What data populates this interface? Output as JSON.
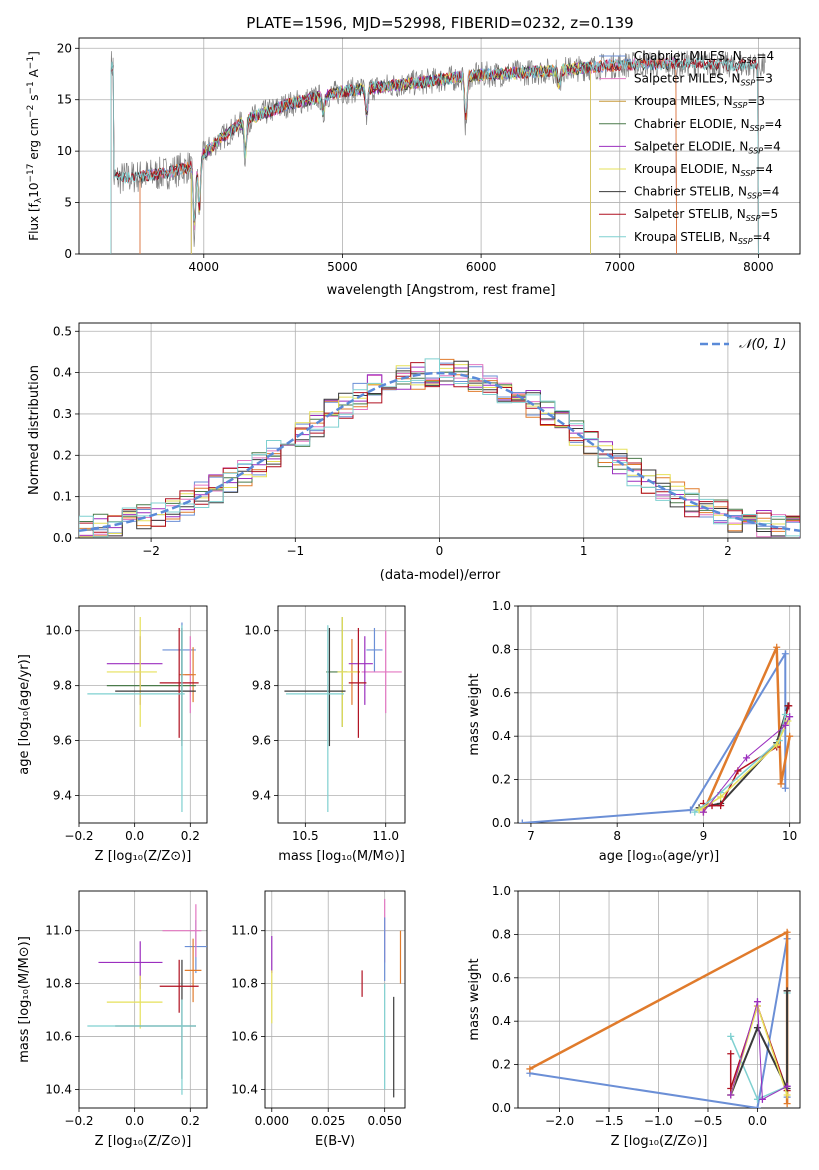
{
  "title": "PLATE=1596, MJD=52998, FIBERID=0232, z=0.139",
  "colors": {
    "chab_miles": "#6b8fd6",
    "salp_miles": "#e377c2",
    "krou_miles": "#d9a23a",
    "chab_elodie": "#4a7a4a",
    "salp_elodie": "#9b2fbf",
    "krou_elodie": "#e6e05a",
    "chab_stelib": "#3a3a3a",
    "salp_stelib": "#b01020",
    "krou_stelib": "#7fd0d0",
    "orange": "#e07b2c",
    "grid": "#b0b0b0",
    "data": "#808080",
    "normal": "#5a8ad8"
  },
  "legend": [
    {
      "text": "Chabrier MILES, N",
      "n": "4",
      "color": "chab_miles"
    },
    {
      "text": "Salpeter MILES, N",
      "n": "3",
      "color": "salp_miles"
    },
    {
      "text": "Kroupa MILES, N",
      "n": "3",
      "color": "krou_miles"
    },
    {
      "text": "Chabrier ELODIE, N",
      "n": "4",
      "color": "chab_elodie"
    },
    {
      "text": "Salpeter ELODIE, N",
      "n": "4",
      "color": "salp_elodie"
    },
    {
      "text": "Kroupa ELODIE, N",
      "n": "4",
      "color": "krou_elodie"
    },
    {
      "text": "Chabrier STELIB, N",
      "n": "4",
      "color": "chab_stelib"
    },
    {
      "text": "Salpeter STELIB, N",
      "n": "5",
      "color": "salp_stelib"
    },
    {
      "text": "Kroupa STELIB, N",
      "n": "4",
      "color": "krou_stelib"
    }
  ],
  "chart_data": [
    {
      "type": "line",
      "id": "spectrum",
      "xlabel": "wavelength [Angstrom, rest frame]",
      "ylabel": "Flux [f_λ 10^-17 erg cm^-2 s^-1 A^-1]",
      "xlim": [
        3100,
        8300
      ],
      "ylim": [
        0,
        21
      ],
      "xticks": [
        4000,
        5000,
        6000,
        7000,
        8000
      ],
      "yticks": [
        0,
        5,
        10,
        15,
        20
      ],
      "continuum": {
        "x": [
          3350,
          3500,
          3700,
          3900,
          4100,
          4300,
          4600,
          5000,
          5500,
          6000,
          6500,
          7000,
          7500,
          8000
        ],
        "y": [
          7.3,
          7.5,
          7.8,
          8.5,
          11.0,
          13.0,
          14.5,
          15.8,
          16.6,
          17.4,
          17.8,
          18.4,
          18.5,
          18.3
        ]
      },
      "features": [
        [
          3933,
          8
        ],
        [
          3968,
          6
        ],
        [
          4300,
          4
        ],
        [
          4861,
          2
        ],
        [
          5175,
          3
        ],
        [
          5890,
          5
        ],
        [
          6563,
          2
        ]
      ]
    },
    {
      "type": "bar",
      "id": "residuals",
      "xlabel": "(data-model)/error",
      "ylabel": "Normed distribution",
      "xlim": [
        -2.5,
        2.5
      ],
      "ylim": [
        0,
        0.52
      ],
      "xticks": [
        -2,
        -1,
        0,
        1,
        2
      ],
      "yticks": [
        0.0,
        0.1,
        0.2,
        0.3,
        0.4,
        0.5
      ],
      "series_legend": "N(0,1)",
      "bin_width": 0.1
    },
    {
      "type": "scatter",
      "id": "age-z",
      "xlabel": "Z [log10(Z/Z⊙)]",
      "ylabel": "age [log10(age/yr)]",
      "xlim": [
        -0.2,
        0.26
      ],
      "ylim": [
        9.3,
        10.09
      ],
      "xticks": [
        -0.2,
        0.0,
        0.2
      ],
      "yticks": [
        9.4,
        9.6,
        9.8,
        10.0
      ],
      "points": [
        {
          "c": "chab_miles",
          "x": 0.17,
          "y": 9.93,
          "xe": [
            0.07,
            0.05
          ],
          "ye": [
            0.1,
            0.1
          ]
        },
        {
          "c": "salp_miles",
          "x": 0.2,
          "y": 9.84,
          "xe": [
            0.02,
            0.01
          ],
          "ye": [
            0.14,
            0.14
          ]
        },
        {
          "c": "orange",
          "x": 0.21,
          "y": 9.84,
          "xe": [
            0.05,
            0.01
          ],
          "ye": [
            0.1,
            0.1
          ]
        },
        {
          "c": "chab_elodie",
          "x": 0.17,
          "y": 9.8,
          "xe": [
            0.27,
            0.05
          ],
          "ye": [
            0.2,
            0.2
          ]
        },
        {
          "c": "salp_elodie",
          "x": 0.02,
          "y": 9.88,
          "xe": [
            0.12,
            0.08
          ],
          "ye": [
            0.15,
            0.1
          ]
        },
        {
          "c": "krou_elodie",
          "x": 0.02,
          "y": 9.85,
          "xe": [
            0.12,
            0.06
          ],
          "ye": [
            0.2,
            0.2
          ]
        },
        {
          "c": "chab_stelib",
          "x": 0.17,
          "y": 9.78,
          "xe": [
            0.24,
            0.05
          ],
          "ye": [
            0.2,
            0.23
          ]
        },
        {
          "c": "salp_stelib",
          "x": 0.16,
          "y": 9.81,
          "xe": [
            0.07,
            0.07
          ],
          "ye": [
            0.2,
            0.2
          ]
        },
        {
          "c": "krou_stelib",
          "x": 0.17,
          "y": 9.77,
          "xe": [
            0.34,
            0.01
          ],
          "ye": [
            0.43,
            0.25
          ]
        }
      ]
    },
    {
      "type": "scatter",
      "id": "age-mass",
      "xlabel": "mass [log10(M/M⊙)]",
      "ylabel": "",
      "xlim": [
        10.33,
        11.12
      ],
      "ylim": [
        9.3,
        10.09
      ],
      "xticks": [
        10.5,
        11.0
      ],
      "yticks": [
        9.4,
        9.6,
        9.8,
        10.0
      ],
      "points": [
        {
          "c": "chab_miles",
          "x": 10.93,
          "y": 9.93,
          "xe": [
            0.05,
            0.05
          ],
          "ye": [
            0.08,
            0.08
          ]
        },
        {
          "c": "salp_miles",
          "x": 11.0,
          "y": 9.85,
          "xe": [
            0.15,
            0.1
          ],
          "ye": [
            0.15,
            0.15
          ]
        },
        {
          "c": "orange",
          "x": 10.79,
          "y": 9.85,
          "xe": [
            0.01,
            0.05
          ],
          "ye": [
            0.12,
            0.12
          ]
        },
        {
          "c": "chab_elodie",
          "x": 10.73,
          "y": 9.85,
          "xe": [
            0.1,
            0.03
          ],
          "ye": [
            0.2,
            0.2
          ]
        },
        {
          "c": "salp_elodie",
          "x": 10.87,
          "y": 9.88,
          "xe": [
            0.1,
            0.05
          ],
          "ye": [
            0.15,
            0.1
          ]
        },
        {
          "c": "krou_elodie",
          "x": 10.73,
          "y": 9.85,
          "xe": [
            0.03,
            0.1
          ],
          "ye": [
            0.2,
            0.2
          ]
        },
        {
          "c": "chab_stelib",
          "x": 10.65,
          "y": 9.78,
          "xe": [
            0.28,
            0.1
          ],
          "ye": [
            0.2,
            0.23
          ]
        },
        {
          "c": "salp_stelib",
          "x": 10.83,
          "y": 9.81,
          "xe": [
            0.06,
            0.05
          ],
          "ye": [
            0.2,
            0.2
          ]
        },
        {
          "c": "krou_stelib",
          "x": 10.64,
          "y": 9.77,
          "xe": [
            0.26,
            0.1
          ],
          "ye": [
            0.43,
            0.25
          ]
        }
      ]
    },
    {
      "type": "line",
      "id": "weight-age",
      "xlabel": "age [log10(age/yr)]",
      "ylabel": "mass weight",
      "xlim": [
        6.85,
        10.12
      ],
      "ylim": [
        0,
        1
      ],
      "xticks": [
        7,
        8,
        9,
        10
      ],
      "yticks": [
        0.0,
        0.2,
        0.4,
        0.6,
        0.8,
        1.0
      ],
      "lines": [
        {
          "c": "chab_miles",
          "w": 2,
          "x": [
            6.9,
            8.85,
            9.95,
            9.95
          ],
          "y": [
            0.0,
            0.06,
            0.78,
            0.16
          ]
        },
        {
          "c": "orange",
          "w": 2.5,
          "x": [
            9.0,
            9.85,
            9.9,
            10.0
          ],
          "y": [
            0.05,
            0.81,
            0.18,
            0.4
          ]
        },
        {
          "c": "chab_stelib",
          "w": 2,
          "x": [
            8.95,
            9.2,
            9.85,
            9.98
          ],
          "y": [
            0.07,
            0.09,
            0.37,
            0.54
          ]
        },
        {
          "c": "salp_stelib",
          "w": 1.5,
          "x": [
            9.0,
            9.1,
            9.2,
            9.4,
            9.85,
            9.99
          ],
          "y": [
            0.09,
            0.08,
            0.08,
            0.24,
            0.35,
            0.54
          ]
        },
        {
          "c": "krou_stelib",
          "w": 1.5,
          "x": [
            8.9,
            9.2,
            9.88,
            9.95
          ],
          "y": [
            0.05,
            0.14,
            0.38,
            0.5
          ]
        },
        {
          "c": "krou_elodie",
          "w": 1.5,
          "x": [
            8.95,
            9.2,
            9.85,
            9.98
          ],
          "y": [
            0.06,
            0.12,
            0.36,
            0.47
          ]
        },
        {
          "c": "salp_elodie",
          "w": 1,
          "x": [
            9.0,
            9.5,
            9.95,
            10.0
          ],
          "y": [
            0.05,
            0.3,
            0.45,
            0.49
          ]
        }
      ]
    },
    {
      "type": "scatter",
      "id": "mass-z",
      "xlabel": "Z [log10(Z/Z⊙)]",
      "ylabel": "mass [log10(M/M⊙)]",
      "xlim": [
        -0.2,
        0.26
      ],
      "ylim": [
        10.33,
        11.15
      ],
      "xticks": [
        -0.2,
        0.0,
        0.2
      ],
      "yticks": [
        10.4,
        10.6,
        10.8,
        11.0
      ],
      "points": [
        {
          "c": "chab_miles",
          "x": 0.22,
          "y": 10.94,
          "xe": [
            0.04,
            0.04
          ],
          "ye": [
            0.1,
            0.1
          ]
        },
        {
          "c": "salp_miles",
          "x": 0.22,
          "y": 11.0,
          "xe": [
            0.12,
            0.02
          ],
          "ye": [
            0.1,
            0.1
          ]
        },
        {
          "c": "orange",
          "x": 0.21,
          "y": 10.85,
          "xe": [
            0.03,
            0.03
          ],
          "ye": [
            0.12,
            0.12
          ]
        },
        {
          "c": "salp_elodie",
          "x": 0.02,
          "y": 10.88,
          "xe": [
            0.15,
            0.08
          ],
          "ye": [
            0.1,
            0.08
          ]
        },
        {
          "c": "krou_elodie",
          "x": 0.02,
          "y": 10.73,
          "xe": [
            0.12,
            0.08
          ],
          "ye": [
            0.1,
            0.1
          ]
        },
        {
          "c": "chab_stelib",
          "x": 0.17,
          "y": 10.64,
          "xe": [
            0.24,
            0.05
          ],
          "ye": [
            0.2,
            0.25
          ]
        },
        {
          "c": "salp_stelib",
          "x": 0.16,
          "y": 10.79,
          "xe": [
            0.07,
            0.07
          ],
          "ye": [
            0.1,
            0.1
          ]
        },
        {
          "c": "krou_stelib",
          "x": 0.17,
          "y": 10.64,
          "xe": [
            0.34,
            0.05
          ],
          "ye": [
            0.26,
            0.1
          ]
        }
      ]
    },
    {
      "type": "scatter",
      "id": "mass-ebv",
      "xlabel": "E(B-V)",
      "ylabel": "",
      "xlim": [
        -0.003,
        0.059
      ],
      "ylim": [
        10.33,
        11.15
      ],
      "xticks": [
        0.0,
        0.025,
        0.05
      ],
      "yticks": [
        10.4,
        10.6,
        10.8,
        11.0
      ],
      "points": [
        {
          "c": "salp_elodie",
          "x": 0.0,
          "y": 10.9,
          "xe": [
            0,
            0
          ],
          "ye": [
            0.06,
            0.08
          ]
        },
        {
          "c": "krou_elodie",
          "x": 0.0,
          "y": 10.75,
          "xe": [
            0,
            0
          ],
          "ye": [
            0.1,
            0.1
          ]
        },
        {
          "c": "salp_stelib",
          "x": 0.04,
          "y": 10.8,
          "xe": [
            0,
            0
          ],
          "ye": [
            0.05,
            0.05
          ]
        },
        {
          "c": "salp_miles",
          "x": 0.05,
          "y": 11.0,
          "xe": [
            0,
            0
          ],
          "ye": [
            0.12,
            0.12
          ]
        },
        {
          "c": "chab_miles",
          "x": 0.05,
          "y": 10.93,
          "xe": [
            0,
            0
          ],
          "ye": [
            0.12,
            0.12
          ]
        },
        {
          "c": "krou_stelib",
          "x": 0.05,
          "y": 10.6,
          "xe": [
            0,
            0
          ],
          "ye": [
            0.2,
            0.2
          ]
        },
        {
          "c": "chab_stelib",
          "x": 0.054,
          "y": 10.55,
          "xe": [
            0,
            0
          ],
          "ye": [
            0.18,
            0.2
          ]
        },
        {
          "c": "orange",
          "x": 0.057,
          "y": 10.9,
          "xe": [
            0,
            0
          ],
          "ye": [
            0.1,
            0.1
          ]
        }
      ]
    },
    {
      "type": "line",
      "id": "weight-z",
      "xlabel": "Z [log10(Z/Z⊙)]",
      "ylabel": "mass weight",
      "xlim": [
        -2.42,
        0.43
      ],
      "ylim": [
        0,
        1
      ],
      "xticks": [
        -2.0,
        -1.5,
        -1.0,
        -0.5,
        0.0
      ],
      "yticks": [
        0.0,
        0.2,
        0.4,
        0.6,
        0.8,
        1.0
      ],
      "lines": [
        {
          "c": "chab_miles",
          "w": 2,
          "x": [
            -2.3,
            0.0,
            0.3,
            0.3
          ],
          "y": [
            0.16,
            0.0,
            0.78,
            0.05
          ]
        },
        {
          "c": "orange",
          "w": 2.5,
          "x": [
            -2.3,
            0.3,
            0.3
          ],
          "y": [
            0.18,
            0.81,
            0.02
          ]
        },
        {
          "c": "salp_stelib",
          "w": 1.5,
          "x": [
            -0.27,
            -0.27,
            0.0,
            0.3,
            0.3
          ],
          "y": [
            0.25,
            0.09,
            0.47,
            0.08,
            0.54
          ]
        },
        {
          "c": "krou_stelib",
          "w": 1.5,
          "x": [
            -0.27,
            0.0,
            0.3,
            0.3
          ],
          "y": [
            0.33,
            0.04,
            0.1,
            0.53
          ]
        },
        {
          "c": "chab_stelib",
          "w": 2,
          "x": [
            -0.27,
            0.0,
            0.3,
            0.3
          ],
          "y": [
            0.06,
            0.37,
            0.09,
            0.54
          ]
        },
        {
          "c": "krou_elodie",
          "w": 1.5,
          "x": [
            -0.27,
            0.0,
            0.3
          ],
          "y": [
            0.06,
            0.47,
            0.06
          ]
        },
        {
          "c": "salp_elodie",
          "w": 1,
          "x": [
            -0.27,
            0.0,
            0.05,
            0.3
          ],
          "y": [
            0.06,
            0.49,
            0.04,
            0.1
          ]
        }
      ]
    }
  ]
}
